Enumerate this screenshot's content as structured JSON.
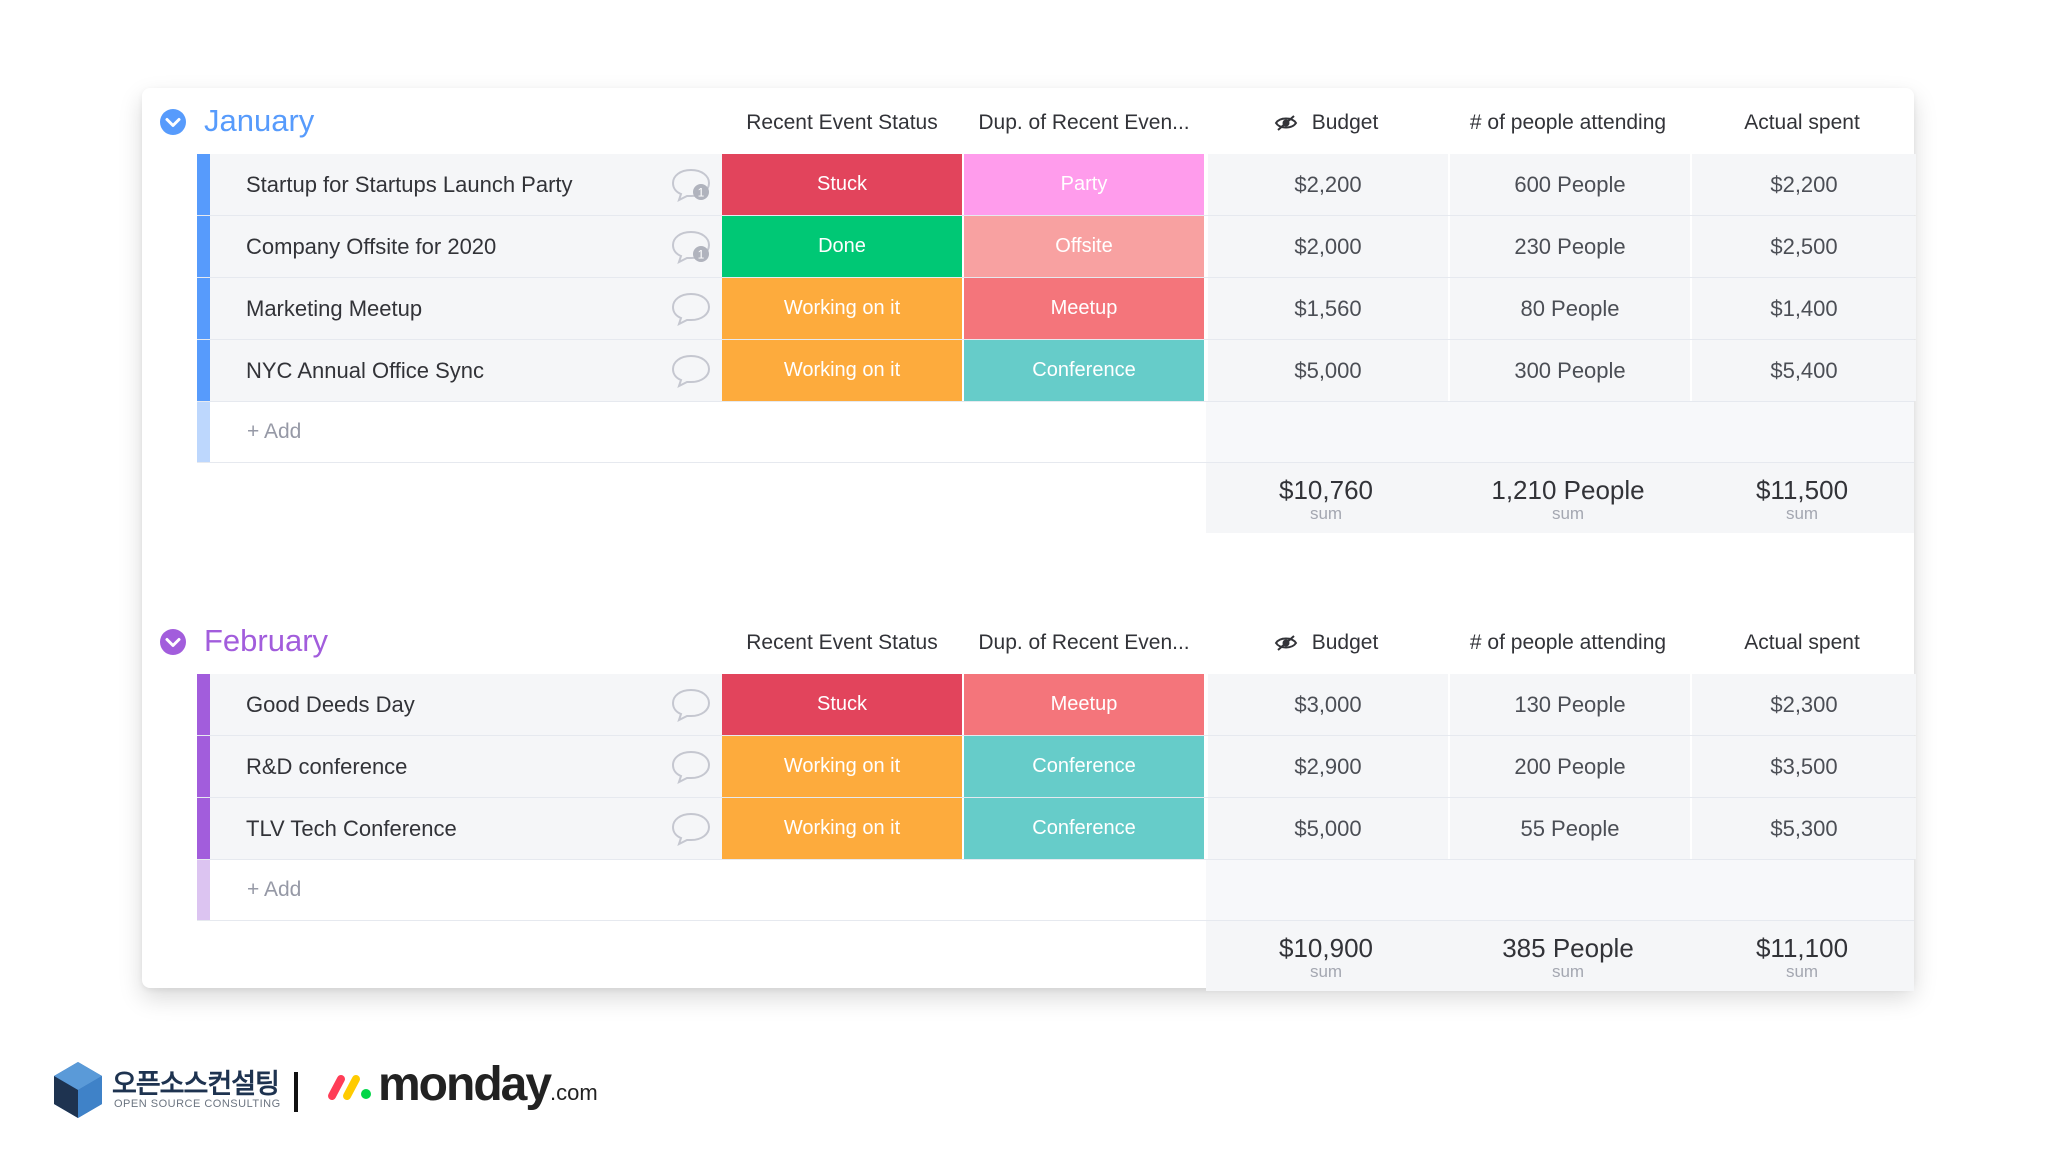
{
  "columns": {
    "status": "Recent Event Status",
    "dup": "Dup. of Recent Even...",
    "budget": "Budget",
    "people": "# of people attending",
    "spent": "Actual spent"
  },
  "colors": {
    "january": "#579bfc",
    "february": "#a25ddc",
    "stuck": "#e2445c",
    "done": "#00c875",
    "working": "#fdab3d",
    "party": "#ff9cec",
    "offsite": "#f8a1a1",
    "meetup": "#f4757b",
    "conference": "#66ccc9"
  },
  "groups": [
    {
      "title": "January",
      "rows": [
        {
          "name": "Startup for Startups Launch Party",
          "comment_count": "1",
          "status": "Stuck",
          "dup": "Party",
          "budget": "$2,200",
          "people": "600 People",
          "spent": "$2,200"
        },
        {
          "name": "Company Offsite for 2020",
          "comment_count": "1",
          "status": "Done",
          "dup": "Offsite",
          "budget": "$2,000",
          "people": "230 People",
          "spent": "$2,500"
        },
        {
          "name": "Marketing Meetup",
          "comment_count": "",
          "status": "Working on it",
          "dup": "Meetup",
          "budget": "$1,560",
          "people": "80 People",
          "spent": "$1,400"
        },
        {
          "name": "NYC Annual Office Sync",
          "comment_count": "",
          "status": "Working on it",
          "dup": "Conference",
          "budget": "$5,000",
          "people": "300 People",
          "spent": "$5,400"
        }
      ],
      "add_label": "+ Add",
      "sums": {
        "budget": "$10,760",
        "people": "1,210 People",
        "spent": "$11,500",
        "label": "sum"
      }
    },
    {
      "title": "February",
      "rows": [
        {
          "name": "Good Deeds Day",
          "comment_count": "",
          "status": "Stuck",
          "dup": "Meetup",
          "budget": "$3,000",
          "people": "130 People",
          "spent": "$2,300"
        },
        {
          "name": "R&D conference",
          "comment_count": "",
          "status": "Working on it",
          "dup": "Conference",
          "budget": "$2,900",
          "people": "200 People",
          "spent": "$3,500"
        },
        {
          "name": "TLV Tech Conference",
          "comment_count": "",
          "status": "Working on it",
          "dup": "Conference",
          "budget": "$5,000",
          "people": "55 People",
          "spent": "$5,300"
        }
      ],
      "add_label": "+ Add",
      "sums": {
        "budget": "$10,900",
        "people": "385 People",
        "spent": "$11,100",
        "label": "sum"
      }
    }
  ],
  "footer": {
    "opensource_name": "오픈소스컨설팅",
    "opensource_sub": "OPEN SOURCE CONSULTING",
    "monday_name": "monday",
    "monday_suffix": ".com"
  }
}
